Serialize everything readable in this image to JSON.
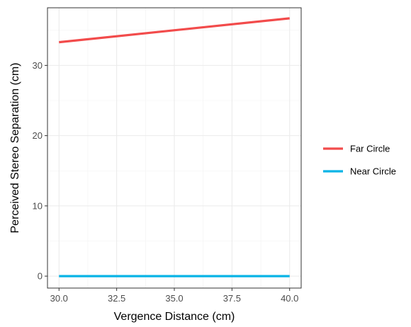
{
  "chart_data": {
    "type": "line",
    "title": "",
    "xlabel": "Vergence Distance (cm)",
    "ylabel": "Perceived Stereo Separation (cm)",
    "xlim": [
      29.5,
      40.5
    ],
    "ylim": [
      -1.7,
      38.2
    ],
    "x_ticks": [
      30,
      32.5,
      35,
      37.5,
      40
    ],
    "x_tick_labels": [
      "30.0",
      "32.5",
      "35.0",
      "37.5",
      "40.0"
    ],
    "y_ticks": [
      0,
      10,
      20,
      30
    ],
    "y_tick_labels": [
      "0",
      "10",
      "20",
      "30"
    ],
    "x_minor_ticks": [
      31.25,
      33.75,
      36.25,
      38.75
    ],
    "y_minor_ticks": [
      5,
      15,
      25,
      35
    ],
    "grid": true,
    "legend_position": "right",
    "series": [
      {
        "name": "Far Circle",
        "color": "#f24b4b",
        "x": [
          30,
          40
        ],
        "y": [
          33.3,
          36.7
        ]
      },
      {
        "name": "Near Circle",
        "color": "#0ab4e6",
        "x": [
          30,
          40
        ],
        "y": [
          0,
          0
        ]
      }
    ]
  }
}
